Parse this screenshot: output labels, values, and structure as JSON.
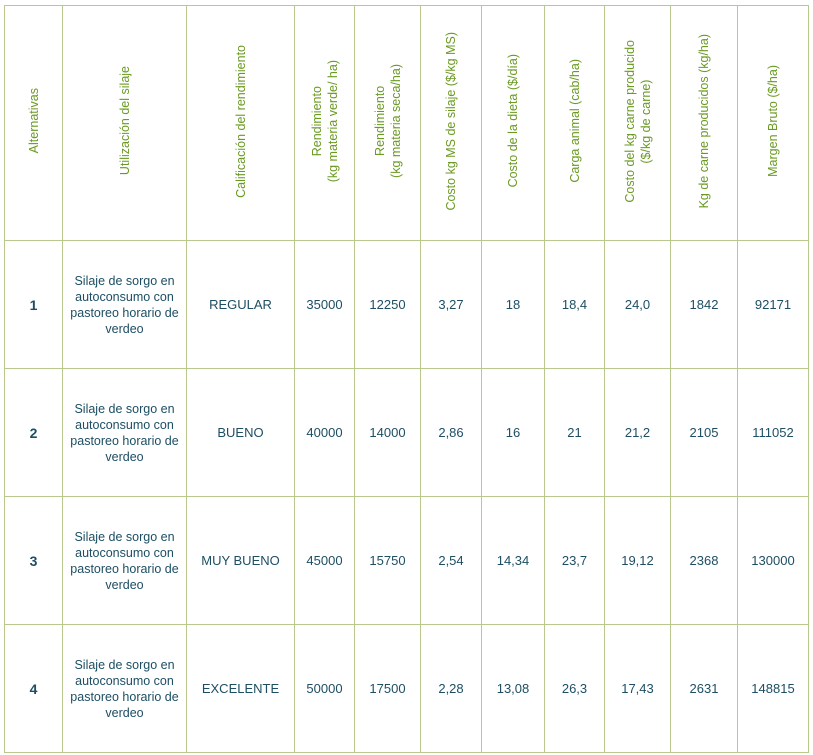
{
  "table": {
    "headers": [
      [
        "Alternativas"
      ],
      [
        "Utilización del silaje"
      ],
      [
        "Calificación del rendimiento"
      ],
      [
        "Rendimiento",
        "(kg materia verde/ ha)"
      ],
      [
        "Rendimiento",
        "(kg materia seca/ha)"
      ],
      [
        "Costo kg MS de silaje ($/kg MS)"
      ],
      [
        "Costo de la dieta ($/día)"
      ],
      [
        "Carga animal (cab/ha)"
      ],
      [
        "Costo del kg carne producido",
        "($/kg de carne)"
      ],
      [
        "Kg de carne producidos (kg/ha)"
      ],
      [
        "Margen Bruto ($/ha)"
      ]
    ],
    "rows": [
      [
        "1",
        "Silaje de sorgo en autoconsumo con pastoreo horario de verdeo",
        "REGULAR",
        "35000",
        "12250",
        "3,27",
        "18",
        "18,4",
        "24,0",
        "1842",
        "92171"
      ],
      [
        "2",
        "Silaje de sorgo en autoconsumo con pastoreo horario de verdeo",
        "BUENO",
        "40000",
        "14000",
        "2,86",
        "16",
        "21",
        "21,2",
        "2105",
        "111052"
      ],
      [
        "3",
        "Silaje de sorgo en autoconsumo con pastoreo horario de verdeo",
        "MUY BUENO",
        "45000",
        "15750",
        "2,54",
        "14,34",
        "23,7",
        "19,12",
        "2368",
        "130000"
      ],
      [
        "4",
        "Silaje de sorgo en autoconsumo con pastoreo horario de verdeo",
        "EXCELENTE",
        "50000",
        "17500",
        "2,28",
        "13,08",
        "26,3",
        "17,43",
        "2631",
        "148815"
      ]
    ]
  },
  "colors": {
    "border": "#b9c98e",
    "header_text": "#6a9a22",
    "body_text": "#1d4e63"
  }
}
